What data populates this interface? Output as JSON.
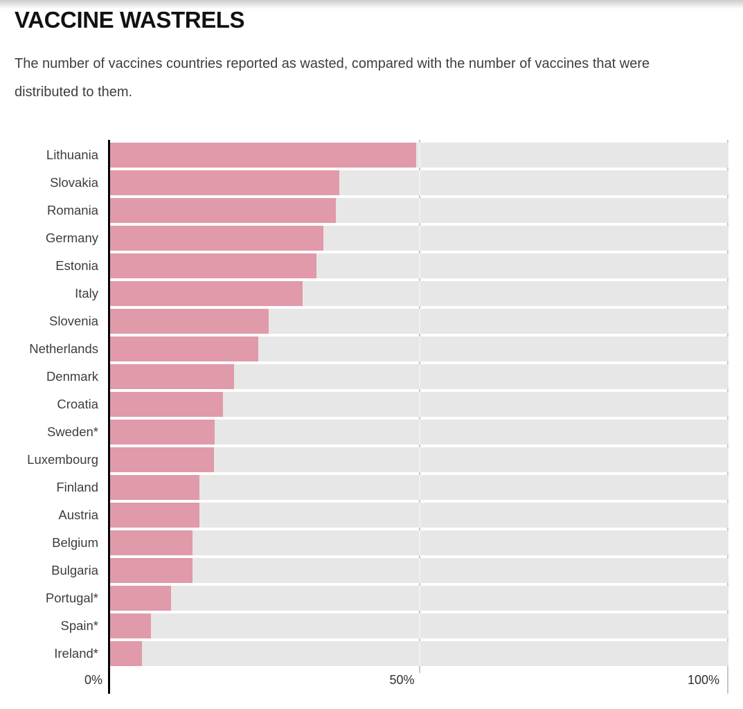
{
  "header": {
    "title": "VACCINE WASTRELS",
    "subtitle": "The number of vaccines countries reported as wasted, compared with the number of vaccines that were distributed to them."
  },
  "colors": {
    "bar": "#e09aa9",
    "track": "#e7e7e7",
    "gridline": "#c8c8c8",
    "axis": "#000000",
    "text": "#3d3d3d"
  },
  "chart_data": {
    "type": "bar",
    "orientation": "horizontal",
    "title": "VACCINE WASTRELS",
    "subtitle": "The number of vaccines countries reported as wasted, compared with the number of vaccines that were distributed to them.",
    "unit": "%",
    "xlim": [
      0,
      100
    ],
    "x_ticks": [
      0,
      50,
      100
    ],
    "x_tick_labels": [
      "0%",
      "50%",
      "100%"
    ],
    "grid": "vertical ticks at 50% and 100%",
    "legend": "none",
    "categories": [
      "Lithuania",
      "Slovakia",
      "Romania",
      "Germany",
      "Estonia",
      "Italy",
      "Slovenia",
      "Netherlands",
      "Denmark",
      "Croatia",
      "Sweden*",
      "Luxembourg",
      "Finland",
      "Austria",
      "Belgium",
      "Bulgaria",
      "Portugal*",
      "Spain*",
      "Ireland*"
    ],
    "values": [
      49.5,
      37.1,
      36.5,
      34.5,
      33.4,
      31.1,
      25.6,
      24.0,
      20.0,
      18.2,
      16.9,
      16.8,
      14.5,
      14.4,
      13.3,
      13.3,
      9.9,
      6.6,
      5.2
    ]
  }
}
